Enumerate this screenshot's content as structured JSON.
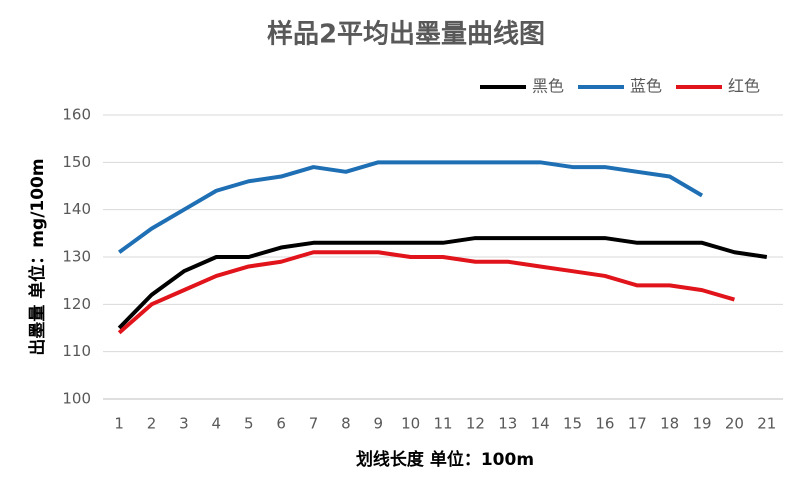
{
  "chart_data": {
    "type": "line",
    "title": "样品2平均出墨量曲线图",
    "x_label": "划线长度 单位：100m",
    "y_label": "出墨量 单位：mg/100m",
    "categories": [
      1,
      2,
      3,
      4,
      5,
      6,
      7,
      8,
      9,
      10,
      11,
      12,
      13,
      14,
      15,
      16,
      17,
      18,
      19,
      20,
      21
    ],
    "series": [
      {
        "name": "黑色",
        "color": "#000000",
        "values": [
          115,
          122,
          127,
          130,
          130,
          132,
          133,
          133,
          133,
          133,
          133,
          134,
          134,
          134,
          134,
          134,
          133,
          133,
          133,
          131,
          130
        ]
      },
      {
        "name": "蓝色",
        "color": "#1f6fb5",
        "values": [
          131,
          136,
          140,
          144,
          146,
          147,
          149,
          148,
          150,
          150,
          150,
          150,
          150,
          150,
          149,
          149,
          148,
          147,
          143,
          null,
          null
        ]
      },
      {
        "name": "红色",
        "color": "#e0141a",
        "values": [
          114,
          120,
          123,
          126,
          128,
          129,
          131,
          131,
          131,
          130,
          130,
          129,
          129,
          128,
          127,
          126,
          124,
          124,
          123,
          121,
          null
        ]
      }
    ],
    "ylim": [
      100,
      160
    ],
    "yticks": [
      100,
      110,
      120,
      130,
      140,
      150,
      160
    ],
    "grid": true,
    "legend": "top-right"
  }
}
